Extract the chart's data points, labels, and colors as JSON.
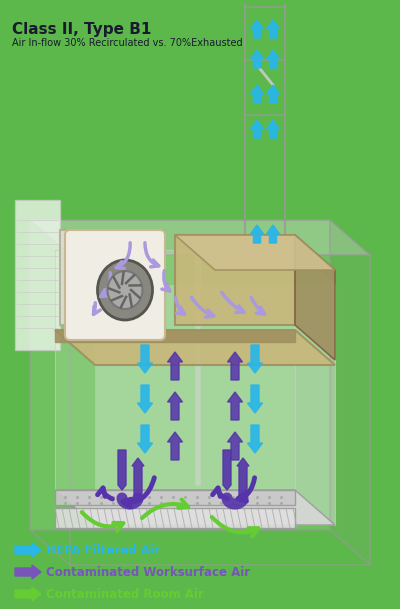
{
  "title_main": "Class II, Type B1",
  "title_sub": "Air In-flow 30% Recirculated vs. 70%Exhausted",
  "legend": [
    {
      "label": "HEPA Filtered Air",
      "color": "#29b6e8"
    },
    {
      "label": "Contaminated Worksurface Air",
      "color": "#7755bb"
    },
    {
      "label": "Contaminated Room Air",
      "color": "#66cc33"
    }
  ],
  "bg_color": "#5cb84a",
  "cyan": "#29b6e8",
  "purple_dark": "#5533aa",
  "purple_light": "#aa99dd",
  "green": "#66cc33",
  "tan": "#c8b87a",
  "tan_dark": "#a09060",
  "gray_light": "#e8e8e8",
  "gray_mid": "#cccccc",
  "gray_edge": "#999999"
}
